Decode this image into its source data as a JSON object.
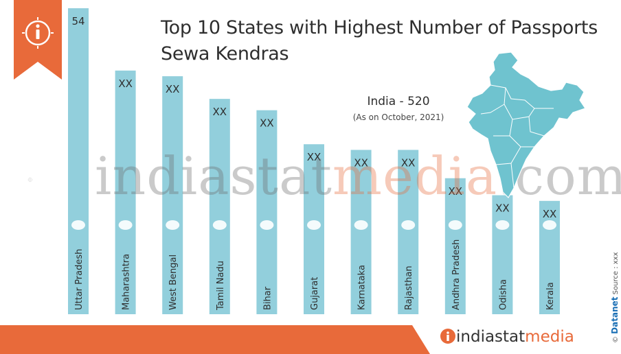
{
  "title_line1": "Top 10 States with Highest Number of Passports",
  "title_line2": "Sewa Kendras",
  "india_total": "India  -  520",
  "as_on": "(As on October, 2021)",
  "watermark": {
    "part1": "indiastat",
    "part2": "media",
    "part3": ".com"
  },
  "brand": {
    "part1": "indiastat",
    "part2": "media"
  },
  "source": {
    "copyright": "©",
    "datanet": "Datanet",
    "label": "Source : xxx"
  },
  "colors": {
    "bar": "#92cfdc",
    "accent": "#e86a3a",
    "map": "#6fc3cf",
    "text": "#2e2e2e"
  },
  "icons": {
    "ribbon": "info-icon",
    "brand": "info-icon"
  },
  "chart_data": {
    "type": "bar",
    "title": "Top 10 States with Highest Number of Passports Sewa Kendras",
    "categories": [
      "Uttar Pradesh",
      "Maharashtra",
      "West Bengal",
      "Tamil Nadu",
      "Bihar",
      "Gujarat",
      "Karnataka",
      "Rajasthan",
      "Andhra Pradesh",
      "Odisha",
      "Kerala"
    ],
    "values": [
      54,
      43,
      42,
      38,
      36,
      30,
      29,
      29,
      24,
      21,
      20
    ],
    "data_labels": [
      "54",
      "XX",
      "XX",
      "XX",
      "XX",
      "XX",
      "XX",
      "XX",
      "XX",
      "XX",
      "XX"
    ],
    "ylim": [
      0,
      54
    ],
    "grid": false,
    "legend": "none"
  }
}
